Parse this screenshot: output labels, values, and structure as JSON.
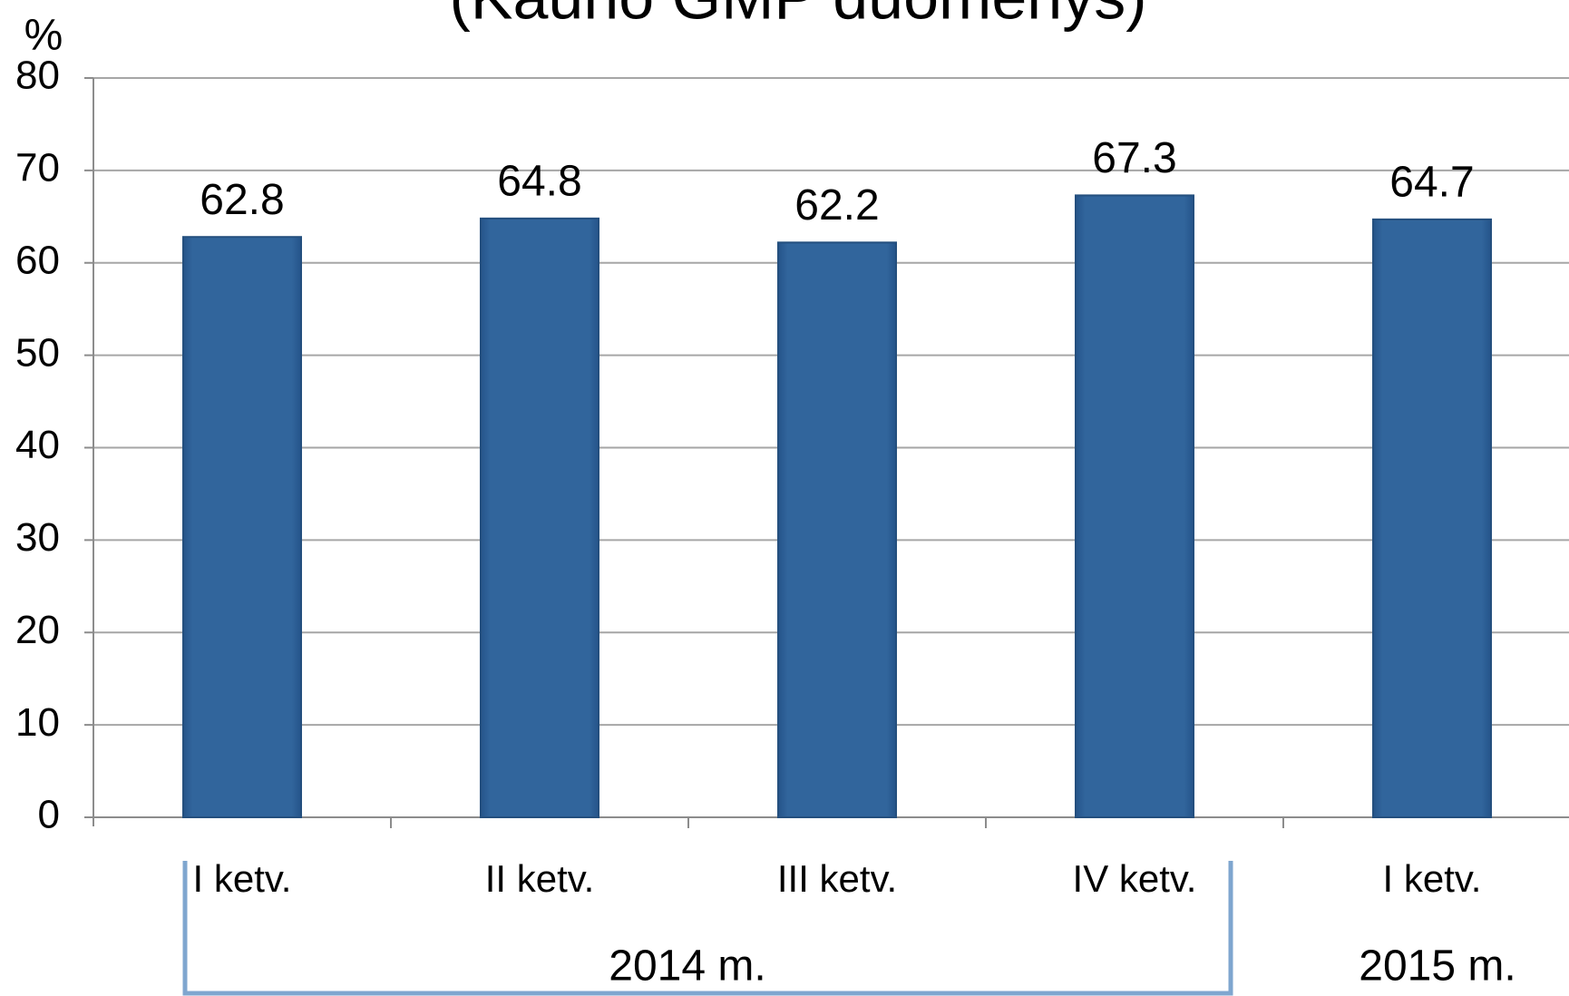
{
  "chart_data": {
    "type": "bar",
    "title": "(Kauno GMP duomenys)",
    "y_label": "%",
    "categories": [
      "I ketv.",
      "II ketv.",
      "III ketv.",
      "IV ketv.",
      "I ketv."
    ],
    "group_labels": [
      "2014 m.",
      "2015 m."
    ],
    "values": [
      62.8,
      64.8,
      62.2,
      67.3,
      64.7
    ],
    "color": "#31659c",
    "ylim": [
      0,
      80
    ],
    "yticks": [
      0,
      10,
      20,
      30,
      40,
      50,
      60,
      70,
      80
    ],
    "grid": true
  }
}
